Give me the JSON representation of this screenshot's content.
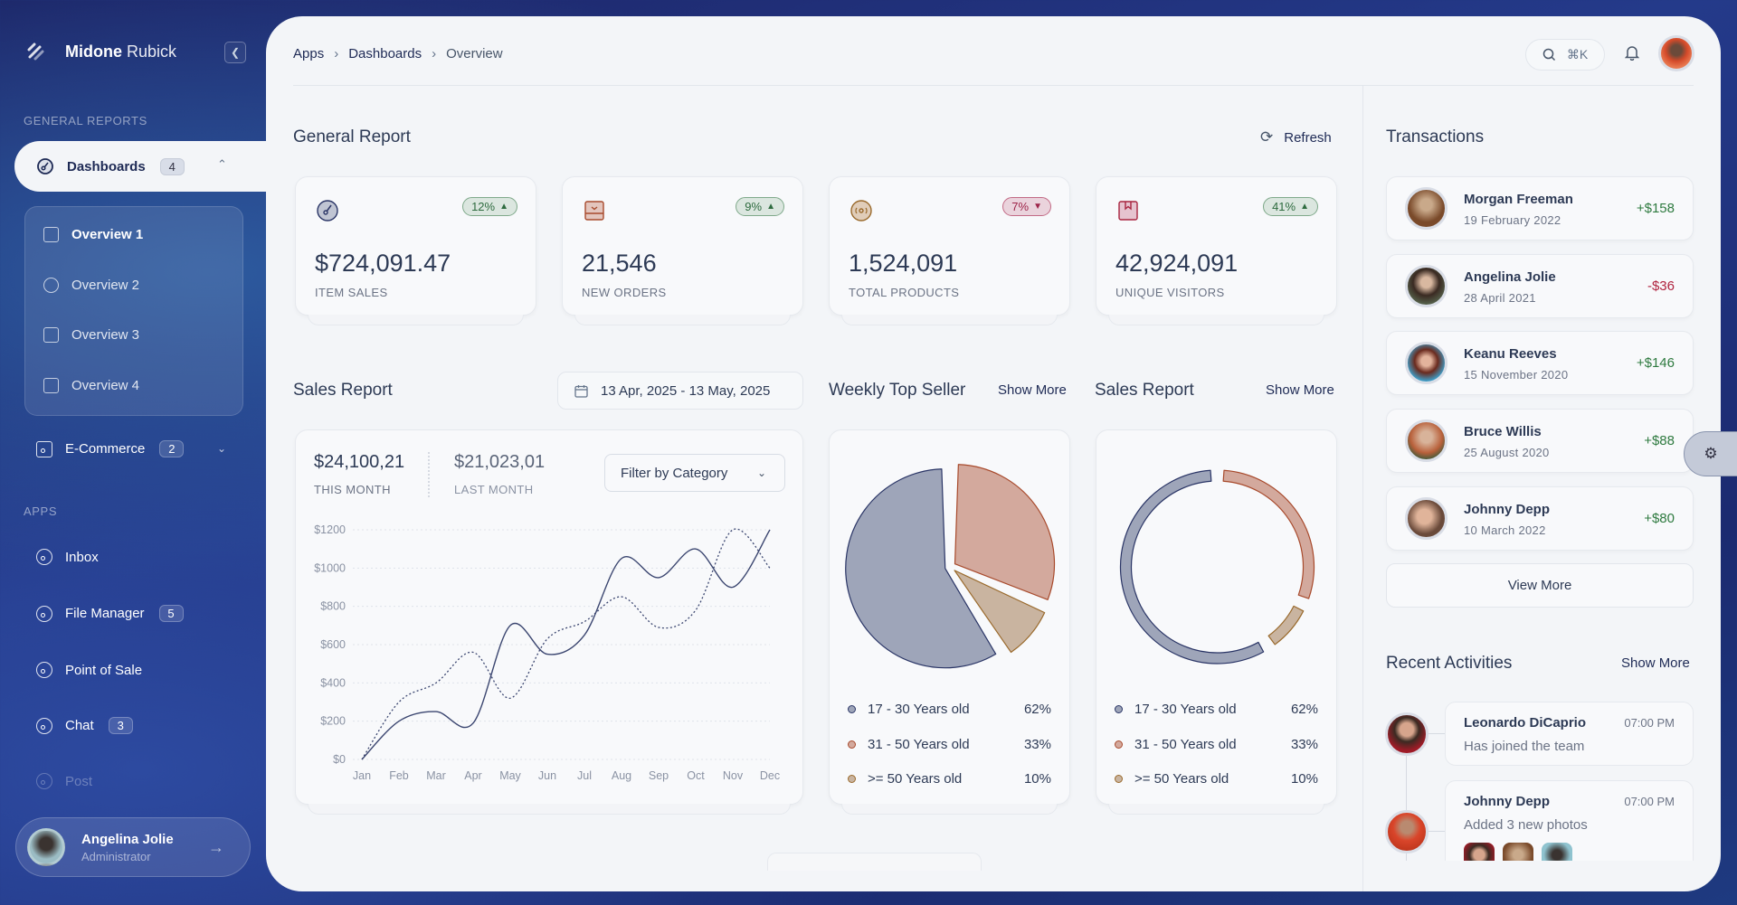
{
  "sidebar": {
    "brand_bold": "Midone",
    "brand_light": " Rubick",
    "section_general": "GENERAL REPORTS",
    "dashboards": {
      "label": "Dashboards",
      "badge": "4"
    },
    "submenu": [
      "Overview 1",
      "Overview 2",
      "Overview 3",
      "Overview 4"
    ],
    "ecommerce": {
      "label": "E-Commerce",
      "badge": "2"
    },
    "section_apps": "APPS",
    "apps": [
      {
        "label": "Inbox",
        "badge": ""
      },
      {
        "label": "File Manager",
        "badge": "5"
      },
      {
        "label": "Point of Sale",
        "badge": ""
      },
      {
        "label": "Chat",
        "badge": "3"
      },
      {
        "label": "Post",
        "badge": ""
      }
    ],
    "user": {
      "name": "Angelina Jolie",
      "role": "Administrator"
    }
  },
  "header": {
    "breadcrumb": [
      "Apps",
      "Dashboards",
      "Overview"
    ],
    "search_shortcut": "⌘K"
  },
  "general_report": {
    "title": "General Report",
    "refresh": "Refresh",
    "stats": [
      {
        "value": "$724,091.47",
        "label": "ITEM SALES",
        "change": "12%",
        "trend": "up",
        "icon": "gauge-icon"
      },
      {
        "value": "21,546",
        "label": "NEW ORDERS",
        "change": "9%",
        "trend": "up",
        "icon": "inbox-icon"
      },
      {
        "value": "1,524,091",
        "label": "TOTAL PRODUCTS",
        "change": "7%",
        "trend": "down",
        "icon": "disc-icon"
      },
      {
        "value": "42,924,091",
        "label": "UNIQUE VISITORS",
        "change": "41%",
        "trend": "up",
        "icon": "bookmark-icon"
      }
    ]
  },
  "sales_report": {
    "title": "Sales Report",
    "date_range": "13 Apr, 2025 - 13 May, 2025",
    "this_month": {
      "value": "$24,100,21",
      "label": "THIS MONTH"
    },
    "last_month": {
      "value": "$21,023,01",
      "label": "LAST MONTH"
    },
    "filter": "Filter by Category"
  },
  "weekly_top_seller": {
    "title": "Weekly Top Seller",
    "show_more": "Show More"
  },
  "sales_report_2": {
    "title": "Sales Report",
    "show_more": "Show More"
  },
  "chart_data": [
    {
      "type": "line",
      "categories": [
        "Jan",
        "Feb",
        "Mar",
        "Apr",
        "May",
        "Jun",
        "Jul",
        "Aug",
        "Sep",
        "Oct",
        "Nov",
        "Dec"
      ],
      "yticks": [
        "$0",
        "$200",
        "$400",
        "$600",
        "$800",
        "$1000",
        "$1200"
      ],
      "ylim": [
        0,
        1200
      ],
      "grid": true,
      "series": [
        {
          "style": "solid",
          "values": [
            0,
            200,
            250,
            190,
            700,
            550,
            650,
            1050,
            950,
            1100,
            900,
            1200
          ]
        },
        {
          "style": "dotted",
          "values": [
            0,
            300,
            400,
            560,
            320,
            630,
            720,
            850,
            690,
            780,
            1200,
            1000
          ]
        }
      ]
    },
    {
      "type": "pie",
      "categories": [
        "17 - 30 Years old",
        "31 - 50 Years old",
        ">= 50 Years old"
      ],
      "values": [
        62,
        33,
        10
      ],
      "labels": [
        "62%",
        "33%",
        "10%"
      ],
      "colors": [
        "#9ea5b9",
        "#d3a99d",
        "#c9b4a0"
      ],
      "strokes": [
        "#2a3566",
        "#a84a2c",
        "#9a6a2c"
      ]
    },
    {
      "type": "donut",
      "categories": [
        "17 - 30 Years old",
        "31 - 50 Years old",
        ">= 50 Years old"
      ],
      "values": [
        62,
        33,
        10
      ],
      "labels": [
        "62%",
        "33%",
        "10%"
      ],
      "colors": [
        "#9ea5b9",
        "#d3a99d",
        "#c9b4a0"
      ],
      "strokes": [
        "#2a3566",
        "#a84a2c",
        "#9a6a2c"
      ]
    }
  ],
  "transactions": {
    "title": "Transactions",
    "items": [
      {
        "name": "Morgan Freeman",
        "date": "19 February 2022",
        "amount": "+$158",
        "sign": "pos"
      },
      {
        "name": "Angelina Jolie",
        "date": "28 April 2021",
        "amount": "-$36",
        "sign": "neg"
      },
      {
        "name": "Keanu Reeves",
        "date": "15 November 2020",
        "amount": "+$146",
        "sign": "pos"
      },
      {
        "name": "Bruce Willis",
        "date": "25 August 2020",
        "amount": "+$88",
        "sign": "pos"
      },
      {
        "name": "Johnny Depp",
        "date": "10 March 2022",
        "amount": "+$80",
        "sign": "pos"
      }
    ],
    "view_more": "View More"
  },
  "recent_activities": {
    "title": "Recent Activities",
    "show_more": "Show More",
    "items": [
      {
        "name": "Leonardo DiCaprio",
        "time": "07:00 PM",
        "desc": "Has joined the team"
      },
      {
        "name": "Johnny Depp",
        "time": "07:00 PM",
        "desc": "Added 3 new photos"
      }
    ]
  },
  "colors": {
    "positive": "#2e7a3f",
    "negative": "#b0243f",
    "accent": "#1e2a55"
  }
}
